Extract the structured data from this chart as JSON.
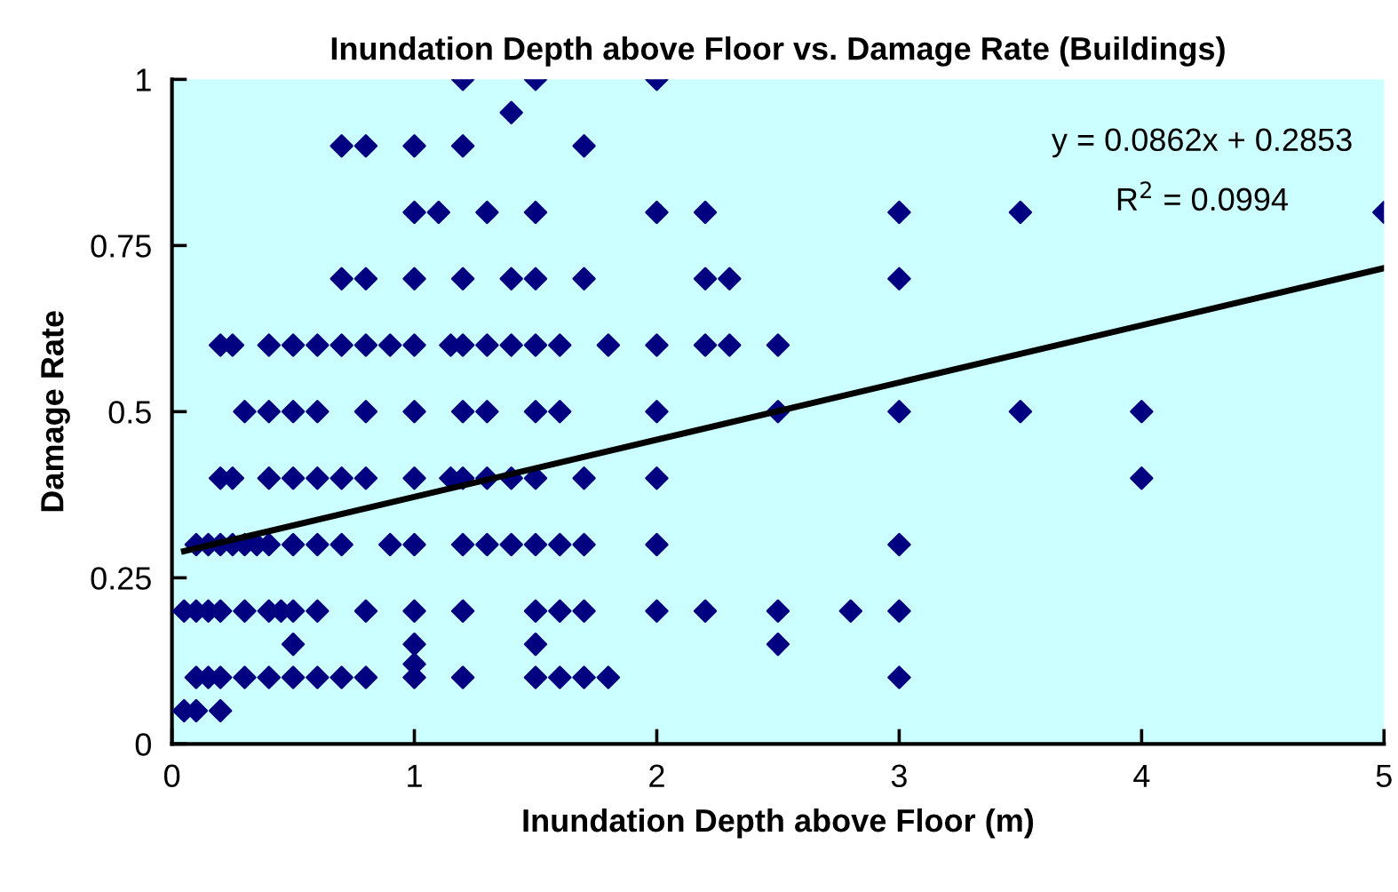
{
  "chart_data": {
    "type": "scatter",
    "title": "Inundation Depth above Floor vs. Damage Rate (Buildings)",
    "xlabel": "Inundation Depth above Floor (m)",
    "ylabel": "Damage Rate",
    "xlim": [
      0,
      5
    ],
    "xticks": [
      0,
      1,
      2,
      3,
      4,
      5
    ],
    "ylim": [
      0,
      1
    ],
    "yticks": [
      0,
      {
        "value": 0.25,
        "label": "0.25"
      },
      {
        "value": 0.5,
        "label": "0.5"
      },
      {
        "value": 0.75,
        "label": "0.75"
      },
      1
    ],
    "marker": "diamond",
    "grid": false,
    "legend": false,
    "annotations": [
      "y = 0.0862x + 0.2853",
      "R$^{2}$ = 0.0994"
    ],
    "series": [
      {
        "color": "#000080",
        "x": [
          1.2,
          1.5,
          2.0,
          1.4,
          0.7,
          0.8,
          1.0,
          1.2,
          1.7,
          1.0,
          1.1,
          1.3,
          1.5,
          2.0,
          2.2,
          3.0,
          3.5,
          5.0,
          0.7,
          0.8,
          1.0,
          1.2,
          1.4,
          1.5,
          1.7,
          2.2,
          2.3,
          3.0,
          0.2,
          0.25,
          0.4,
          0.5,
          0.6,
          0.7,
          0.8,
          0.9,
          1.0,
          1.15,
          1.2,
          1.3,
          1.4,
          1.5,
          1.6,
          1.8,
          2.0,
          2.2,
          2.3,
          2.5,
          0.3,
          0.4,
          0.5,
          0.6,
          0.8,
          1.0,
          1.2,
          1.3,
          1.5,
          1.6,
          2.0,
          2.5,
          3.0,
          3.5,
          4.0,
          0.2,
          0.25,
          0.4,
          0.5,
          0.6,
          0.7,
          0.8,
          1.0,
          1.15,
          1.2,
          1.3,
          1.4,
          1.5,
          1.7,
          2.0,
          4.0,
          0.1,
          0.15,
          0.2,
          0.25,
          0.3,
          0.35,
          0.4,
          0.5,
          0.6,
          0.7,
          0.9,
          1.0,
          1.2,
          1.3,
          1.4,
          1.5,
          1.6,
          1.7,
          2.0,
          3.0,
          0.05,
          0.1,
          0.15,
          0.2,
          0.3,
          0.4,
          0.45,
          0.5,
          0.6,
          0.8,
          1.0,
          1.2,
          1.5,
          1.6,
          1.7,
          2.0,
          2.2,
          2.5,
          2.8,
          3.0,
          0.5,
          1.0,
          1.5,
          2.5,
          1.0,
          0.1,
          0.15,
          0.2,
          0.3,
          0.4,
          0.5,
          0.6,
          0.7,
          0.8,
          1.0,
          1.2,
          1.5,
          1.6,
          1.7,
          1.8,
          3.0,
          0.05,
          0.1,
          0.2
        ],
        "values": [
          1,
          1,
          1,
          0.95,
          0.9,
          0.9,
          0.9,
          0.9,
          0.9,
          0.8,
          0.8,
          0.8,
          0.8,
          0.8,
          0.8,
          0.8,
          0.8,
          0.8,
          0.7,
          0.7,
          0.7,
          0.7,
          0.7,
          0.7,
          0.7,
          0.7,
          0.7,
          0.7,
          0.6,
          0.6,
          0.6,
          0.6,
          0.6,
          0.6,
          0.6,
          0.6,
          0.6,
          0.6,
          0.6,
          0.6,
          0.6,
          0.6,
          0.6,
          0.6,
          0.6,
          0.6,
          0.6,
          0.6,
          0.5,
          0.5,
          0.5,
          0.5,
          0.5,
          0.5,
          0.5,
          0.5,
          0.5,
          0.5,
          0.5,
          0.5,
          0.5,
          0.5,
          0.5,
          0.4,
          0.4,
          0.4,
          0.4,
          0.4,
          0.4,
          0.4,
          0.4,
          0.4,
          0.4,
          0.4,
          0.4,
          0.4,
          0.4,
          0.4,
          0.4,
          0.3,
          0.3,
          0.3,
          0.3,
          0.3,
          0.3,
          0.3,
          0.3,
          0.3,
          0.3,
          0.3,
          0.3,
          0.3,
          0.3,
          0.3,
          0.3,
          0.3,
          0.3,
          0.3,
          0.3,
          0.2,
          0.2,
          0.2,
          0.2,
          0.2,
          0.2,
          0.2,
          0.2,
          0.2,
          0.2,
          0.2,
          0.2,
          0.2,
          0.2,
          0.2,
          0.2,
          0.2,
          0.2,
          0.2,
          0.2,
          0.15,
          0.15,
          0.15,
          0.15,
          0.12,
          0.1,
          0.1,
          0.1,
          0.1,
          0.1,
          0.1,
          0.1,
          0.1,
          0.1,
          0.1,
          0.1,
          0.1,
          0.1,
          0.1,
          0.1,
          0.1,
          0.05,
          0.05,
          0.05
        ]
      },
      {
        "type": "line",
        "color": "#000000",
        "line_style": "solid",
        "marker": "none",
        "x": [
          0.05,
          5
        ],
        "values": [
          0.29,
          0.716
        ]
      }
    ]
  }
}
